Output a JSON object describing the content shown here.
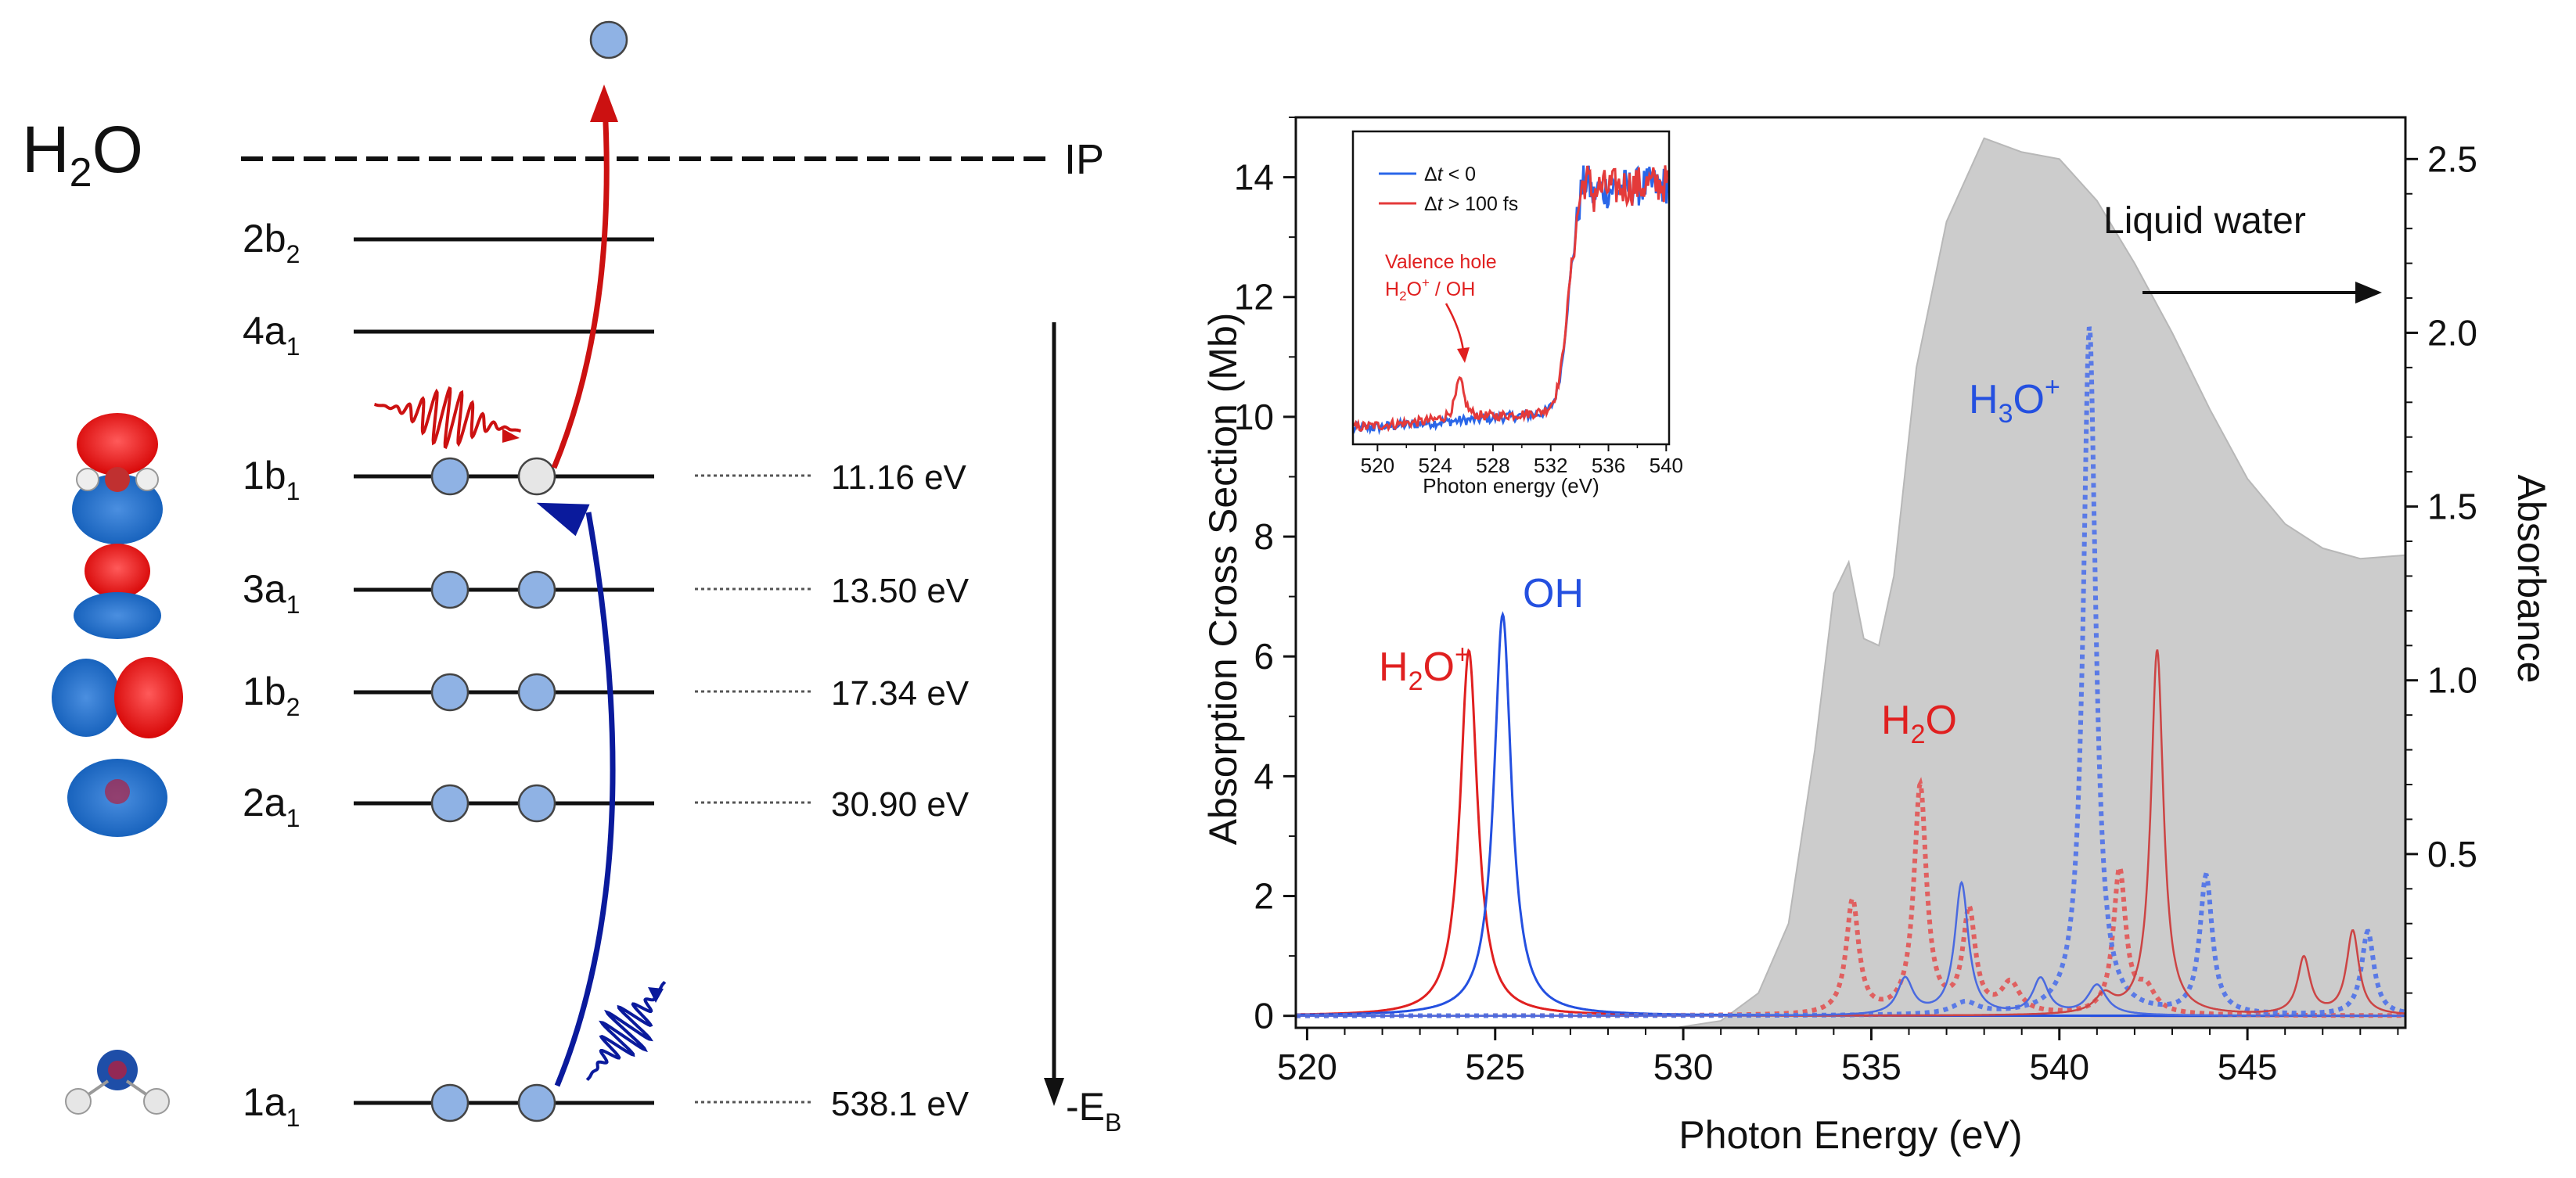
{
  "left_panel": {
    "molecule": "H",
    "molecule_sub": "2",
    "molecule_tail": "O",
    "ip_label": "IP",
    "eb_label": "-E",
    "eb_sub": "B",
    "levels": [
      {
        "name": "2b",
        "sub": "2",
        "energy": "",
        "electrons": 0
      },
      {
        "name": "4a",
        "sub": "1",
        "energy": "",
        "electrons": 0
      },
      {
        "name": "1b",
        "sub": "1",
        "energy": "11.16 eV",
        "electrons": 1,
        "hole": true
      },
      {
        "name": "3a",
        "sub": "1",
        "energy": "13.50 eV",
        "electrons": 2
      },
      {
        "name": "1b",
        "sub": "2",
        "energy": "17.34 eV",
        "electrons": 2
      },
      {
        "name": "2a",
        "sub": "1",
        "energy": "30.90 eV",
        "electrons": 2
      },
      {
        "name": "1a",
        "sub": "1",
        "energy": "538.1 eV",
        "electrons": 2
      }
    ],
    "colors": {
      "red": "#cc1111",
      "blue": "#0a1a9c",
      "electron": "#8fb2e4",
      "hole": "#e6e6e6"
    }
  },
  "chart_data": {
    "type": "line",
    "xlabel": "Photon Energy (eV)",
    "ylabel": "Absorption Cross Section (Mb)",
    "y2label": "Absorbance",
    "xlim": [
      519.7,
      549.2
    ],
    "ylim": [
      -0.2,
      15.0
    ],
    "y2lim": [
      0.0,
      2.62
    ],
    "xticks": [
      520,
      525,
      530,
      535,
      540,
      545
    ],
    "yticks": [
      0,
      2,
      4,
      6,
      8,
      10,
      12,
      14
    ],
    "y2ticks": [
      0.5,
      1.0,
      1.5,
      2.0,
      2.5
    ],
    "labels": {
      "h2op": "H",
      "h2op_sub": "2",
      "h2op_tail": "O",
      "h2op_sup": "+",
      "oh": "OH",
      "h3op": "H",
      "h3op_sub": "3",
      "h3op_tail": "O",
      "h3op_sup": "+",
      "h2o": "H",
      "h2o_sub": "2",
      "h2o_tail": "O",
      "liquid": "Liquid water"
    },
    "series": [
      {
        "name": "Liquid water",
        "axis": "right",
        "style": "fill",
        "color": "#cccccc",
        "x": [
          529.8,
          531.0,
          532.0,
          532.8,
          533.5,
          534.0,
          534.4,
          534.8,
          535.2,
          535.6,
          536.2,
          537.0,
          538.0,
          539.0,
          540.0,
          541.0,
          542.0,
          543.0,
          544.0,
          545.0,
          546.0,
          547.0,
          548.0,
          549.2
        ],
        "y": [
          0.0,
          0.02,
          0.1,
          0.3,
          0.8,
          1.25,
          1.34,
          1.12,
          1.1,
          1.3,
          1.9,
          2.32,
          2.56,
          2.52,
          2.5,
          2.38,
          2.2,
          2.0,
          1.78,
          1.58,
          1.45,
          1.38,
          1.35,
          1.36
        ]
      },
      {
        "name": "H2O+",
        "axis": "left",
        "style": "solid",
        "color": "#e02020",
        "width": 3,
        "peaks": [
          [
            524.3,
            6.1,
            0.28
          ]
        ]
      },
      {
        "name": "OH",
        "axis": "left",
        "style": "solid",
        "color": "#2450e0",
        "width": 3,
        "peaks": [
          [
            525.2,
            6.7,
            0.28
          ]
        ]
      },
      {
        "name": "H2O",
        "axis": "left",
        "style": "dotted",
        "color": "#e06060",
        "width": 6,
        "peaks": [
          [
            534.5,
            1.9,
            0.2
          ],
          [
            536.3,
            3.8,
            0.2
          ],
          [
            537.6,
            1.7,
            0.2
          ],
          [
            538.7,
            0.5,
            0.3
          ],
          [
            541.6,
            2.4,
            0.2
          ],
          [
            542.3,
            0.4,
            0.3
          ]
        ]
      },
      {
        "name": "H3O+",
        "axis": "left",
        "style": "dotted",
        "color": "#5a7ae6",
        "width": 6,
        "peaks": [
          [
            520.0,
            0.0,
            1.0
          ],
          [
            540.8,
            11.5,
            0.2
          ],
          [
            543.9,
            2.3,
            0.2
          ],
          [
            548.2,
            1.4,
            0.2
          ],
          [
            537.5,
            0.2,
            0.4
          ]
        ]
      },
      {
        "name": "H2O (thin)",
        "axis": "left",
        "style": "solid",
        "color": "#cc4444",
        "width": 2.5,
        "peaks": [
          [
            542.6,
            6.1,
            0.2
          ],
          [
            546.5,
            0.95,
            0.2
          ],
          [
            547.8,
            1.4,
            0.2
          ],
          [
            541.2,
            0.3,
            0.3
          ]
        ]
      },
      {
        "name": "H3O+ (thin)",
        "axis": "left",
        "style": "solid",
        "color": "#4a6ae0",
        "width": 2.5,
        "peaks": [
          [
            535.9,
            0.6,
            0.25
          ],
          [
            537.4,
            2.2,
            0.22
          ],
          [
            539.5,
            0.6,
            0.25
          ],
          [
            541.0,
            0.5,
            0.3
          ]
        ]
      }
    ]
  },
  "inset_data": {
    "type": "line",
    "xlabel": "Photon energy (eV)",
    "xlim": [
      518.3,
      540.2
    ],
    "xticks": [
      520,
      524,
      528,
      532,
      536,
      540
    ],
    "legend": [
      {
        "text_pre": "Δ",
        "text_it": "t",
        "text_post": " < 0",
        "color": "#2a66e8"
      },
      {
        "text_pre": "Δ",
        "text_it": "t",
        "text_post": " > 100 fs",
        "color": "#e43a3a"
      }
    ],
    "annotation": {
      "line1": "Valence hole",
      "line2_a": "H",
      "line2_sub": "2",
      "line2_b": "O",
      "line2_sup": "+",
      "line2_c": " / OH"
    },
    "series": [
      {
        "name": "Δt < 0",
        "color": "#2a66e8"
      },
      {
        "name": "Δt > 100 fs",
        "color": "#e43a3a",
        "peak": [
          525.7,
          0.9
        ]
      }
    ]
  }
}
